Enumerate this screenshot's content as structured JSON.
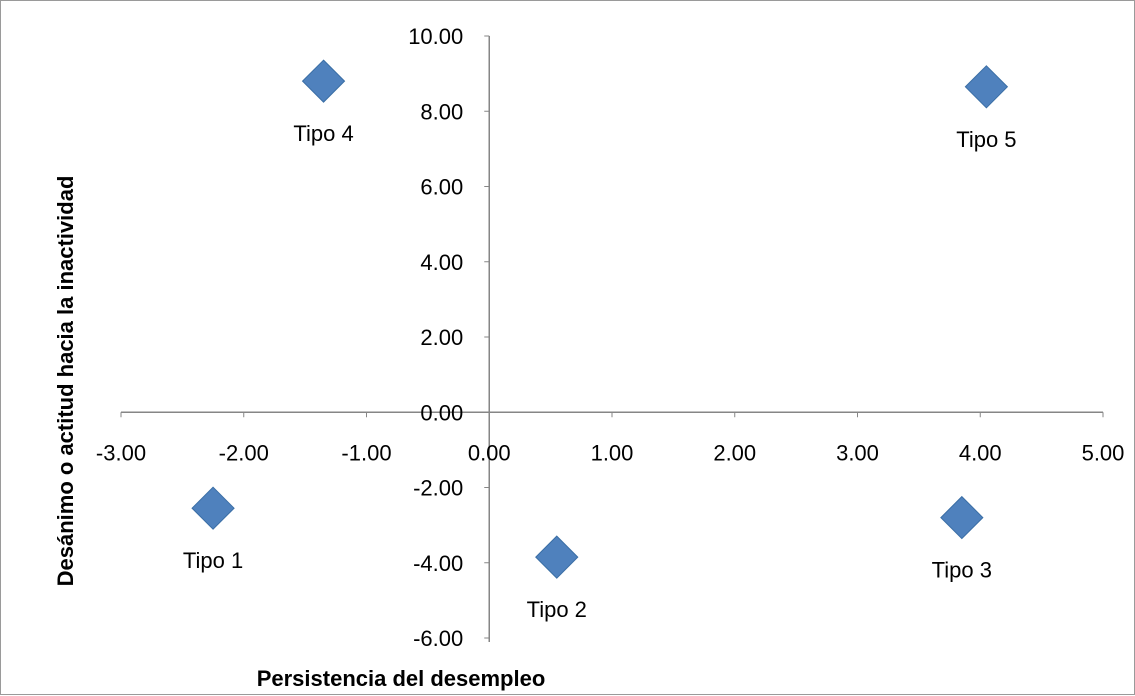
{
  "chart_data": {
    "type": "scatter",
    "xlabel": "Persistencia del desempleo",
    "ylabel": "Desánimo o actitud hacia la inactividad",
    "xlim": [
      -3,
      5
    ],
    "ylim": [
      -6,
      10
    ],
    "x_ticks": [
      "-3.00",
      "-2.00",
      "-1.00",
      "0.00",
      "1.00",
      "2.00",
      "3.00",
      "4.00",
      "5.00"
    ],
    "y_ticks": [
      "10.00",
      "8.00",
      "6.00",
      "4.00",
      "2.00",
      "0.00",
      "-2.00",
      "-4.00",
      "-6.00"
    ],
    "grid": false,
    "marker": "diamond",
    "marker_color": "#4f81bd",
    "marker_edge_color": "#3a6ea5",
    "axis_color": "#868686",
    "points": [
      {
        "label": "Tipo 1",
        "x": -2.25,
        "y": -2.55
      },
      {
        "label": "Tipo 2",
        "x": 0.55,
        "y": -3.85
      },
      {
        "label": "Tipo 3",
        "x": 3.85,
        "y": -2.8
      },
      {
        "label": "Tipo 4",
        "x": -1.35,
        "y": 8.8
      },
      {
        "label": "Tipo 5",
        "x": 4.05,
        "y": 8.65
      }
    ]
  }
}
